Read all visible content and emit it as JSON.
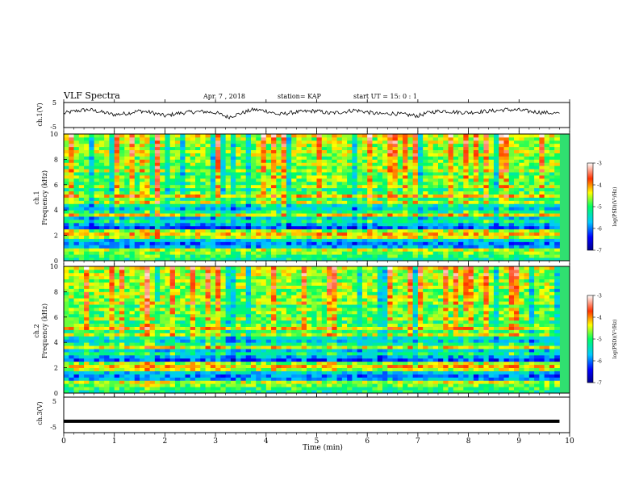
{
  "header": {
    "title": "VLF Spectra",
    "date": "Apr. 7 , 2018",
    "station": "station= KAP",
    "start": "start UT = 15: 0 : 1"
  },
  "chart_data": [
    {
      "type": "line",
      "panel": "ch1-waveform",
      "ylabel": "ch.1(V)",
      "ylim": [
        -5,
        5
      ],
      "yticks": [
        "5",
        "-5"
      ],
      "x": [
        0,
        0.25,
        0.5,
        0.75,
        1,
        1.25,
        1.5,
        1.75,
        2,
        2.25,
        2.5,
        2.75,
        3,
        3.25,
        3.5,
        3.75,
        4,
        4.25,
        4.5,
        4.75,
        5,
        5.25,
        5.5,
        5.75,
        6,
        6.25,
        6.5,
        6.75,
        7,
        7.25,
        7.5,
        7.75,
        8,
        8.25,
        8.5,
        8.75,
        9,
        9.25,
        9.5,
        9.8
      ],
      "values": [
        0.5,
        1.5,
        2.0,
        1.0,
        0.0,
        0.5,
        1.5,
        0.8,
        -0.5,
        0.5,
        1.0,
        1.2,
        0.8,
        -1.0,
        0.5,
        2.0,
        1.5,
        0.0,
        0.8,
        1.2,
        1.5,
        0.5,
        1.0,
        1.8,
        1.0,
        0.2,
        0.5,
        0.0,
        -0.5,
        1.0,
        1.5,
        1.0,
        0.8,
        1.2,
        1.5,
        2.0,
        1.8,
        1.2,
        0.8,
        0.5
      ]
    },
    {
      "type": "heatmap",
      "panel": "ch1-spectrogram",
      "ylabel": "ch.1 Frequency (kHz)",
      "ylim": [
        0,
        10
      ],
      "yticks": [
        "0",
        "2",
        "4",
        "6",
        "8",
        "10"
      ],
      "colorbar": {
        "label": "log(PSD)(V²/Hz)",
        "range": [
          -7,
          -3
        ],
        "ticks": [
          "-3",
          "-4",
          "-5",
          "-6",
          "-7"
        ]
      },
      "time_range_min": [
        0,
        9.8
      ],
      "burst_interval_min": [
        1.45,
        1.9
      ]
    },
    {
      "type": "heatmap",
      "panel": "ch2-spectrogram",
      "ylabel": "ch.2 Frequency (kHz)",
      "ylim": [
        0,
        10
      ],
      "yticks": [
        "0",
        "2",
        "4",
        "6",
        "8",
        "10"
      ],
      "colorbar": {
        "label": "log(PSD)(V²/Hz)",
        "range": [
          -7,
          -3
        ],
        "ticks": [
          "-3",
          "-4",
          "-5",
          "-6",
          "-7"
        ]
      },
      "time_range_min": [
        0,
        9.8
      ],
      "burst_interval_min": [
        1.45,
        1.9
      ]
    },
    {
      "type": "line",
      "panel": "ch3-waveform",
      "ylabel": "ch.3(V)",
      "ylim": [
        -5,
        5
      ],
      "yticks": [
        "5",
        "-5"
      ],
      "x": [
        0,
        9.8
      ],
      "values": [
        -1.8,
        -1.8
      ]
    }
  ],
  "xaxis": {
    "label": "Time (min)",
    "ticks": [
      "0",
      "1",
      "2",
      "3",
      "4",
      "5",
      "6",
      "7",
      "8",
      "9",
      "10"
    ],
    "xlim": [
      0,
      10
    ]
  }
}
